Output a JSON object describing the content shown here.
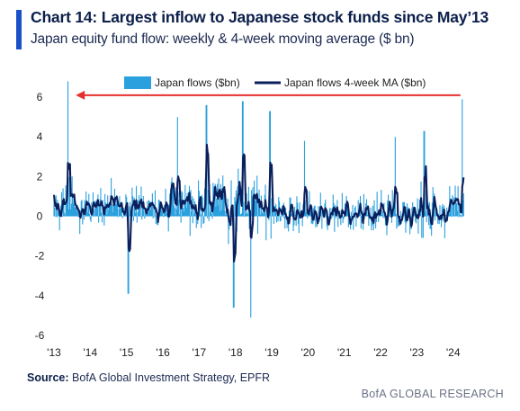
{
  "header": {
    "title": "Chart 14: Largest inflow to Japanese stock funds since May’13",
    "subtitle": "Japan equity fund flow: weekly & 4-week moving average ($ bn)"
  },
  "footer": {
    "source_label": "Source:",
    "source_text": "BofA Global Investment Strategy, EPFR",
    "brand": "BofA GLOBAL RESEARCH"
  },
  "colors": {
    "bars": "#2aa0de",
    "ma_line": "#0b1f5c",
    "arrow": "#e5312e",
    "accent": "#1a50c8"
  },
  "chart_data": {
    "type": "bar",
    "x_ticks": [
      "'13",
      "'14",
      "'15",
      "'16",
      "'17",
      "'18",
      "'19",
      "'20",
      "'21",
      "'22",
      "'23",
      "'24"
    ],
    "y_ticks": [
      "6",
      "4",
      "2",
      "0",
      "-2",
      "-4",
      "-6"
    ],
    "ylim": [
      -6,
      7
    ],
    "xlim": [
      2013.0,
      2024.9
    ],
    "legend": {
      "placement": "top-center"
    },
    "series": [
      {
        "name": "Japan flows ($bn)",
        "kind": "bar",
        "peaks": [
          [
            2013.38,
            6.8
          ],
          [
            2015.05,
            -3.9
          ],
          [
            2016.4,
            5.0
          ],
          [
            2017.2,
            5.6
          ],
          [
            2017.95,
            -4.6
          ],
          [
            2018.2,
            5.8
          ],
          [
            2018.42,
            -5.1
          ],
          [
            2018.95,
            5.3
          ],
          [
            2019.9,
            3.8
          ],
          [
            2022.4,
            4.0
          ],
          [
            2023.2,
            4.3
          ],
          [
            2024.25,
            5.9
          ]
        ]
      },
      {
        "name": "Japan flows 4-week MA ($bn)",
        "kind": "line"
      }
    ],
    "annotations": [
      {
        "type": "arrow",
        "from": [
          2024.2,
          6.1
        ],
        "to": [
          2013.6,
          6.1
        ]
      }
    ]
  }
}
